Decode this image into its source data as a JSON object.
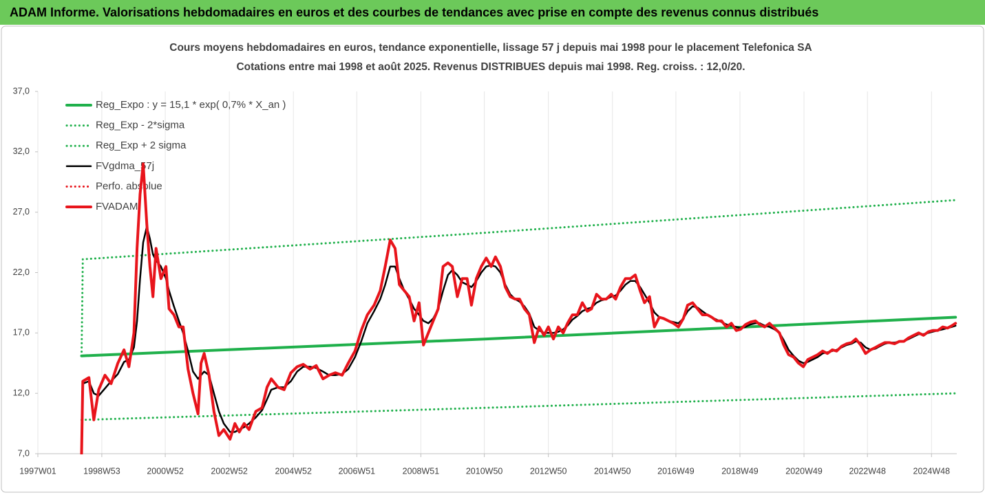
{
  "chart_data": {
    "type": "line",
    "header": "ADAM Informe. Valorisations hebdomadaires en euros et des courbes de tendances avec prise en compte des revenus connus distribués",
    "title": "Cours moyens hebdomadaires en euros, tendance exponentielle, lissage 57 j depuis mai 1998 pour le placement Telefonica SA",
    "subtitle": "Cotations entre mai 1998 et août 2025. Revenus DISTRIBUES depuis mai 1998. Reg. croiss. : 12,0/20.",
    "grid": "x",
    "legend": "top-left",
    "xlim": [
      "1997W01",
      "2025W37"
    ],
    "xticks": [
      "1997W01",
      "1998W53",
      "2000W52",
      "2002W52",
      "2004W52",
      "2006W51",
      "2008W51",
      "2010W50",
      "2012W50",
      "2014W50",
      "2016W49",
      "2018W49",
      "2020W49",
      "2022W48",
      "2024W48"
    ],
    "ylim": [
      7,
      37
    ],
    "yticks": [
      {
        "value": 7,
        "label": "7,0"
      },
      {
        "value": 12,
        "label": "12,0"
      },
      {
        "value": 17,
        "label": "17,0"
      },
      {
        "value": 22,
        "label": "22,0"
      },
      {
        "value": 27,
        "label": "27,0"
      },
      {
        "value": 32,
        "label": "32,0"
      },
      {
        "value": 37,
        "label": "37,0"
      }
    ],
    "x": [
      "1998W20",
      "1998W22",
      "1998W32",
      "1998W40",
      "1998W48",
      "1999W06",
      "1999W16",
      "1999W27",
      "1999W37",
      "1999W45",
      "2000W01",
      "2000W06",
      "2000W11",
      "2000W16",
      "2000W22",
      "2000W27",
      "2000W32",
      "2000W37",
      "2000W45",
      "2001W01",
      "2001W06",
      "2001W14",
      "2001W22",
      "2001W29",
      "2001W37",
      "2001W45",
      "2002W01",
      "2002W06",
      "2002W11",
      "2002W19",
      "2002W27",
      "2002W35",
      "2002W43",
      "2003W01",
      "2003W09",
      "2003W16",
      "2003W24",
      "2003W32",
      "2003W43",
      "2004W01",
      "2004W09",
      "2004W16",
      "2004W27",
      "2004W37",
      "2004W48",
      "2005W06",
      "2005W16",
      "2005W27",
      "2005W37",
      "2005W48",
      "2006W06",
      "2006W16",
      "2006W27",
      "2006W37",
      "2006W48",
      "2007W06",
      "2007W16",
      "2007W27",
      "2007W37",
      "2007W45",
      "2008W01",
      "2008W09",
      "2008W16",
      "2008W24",
      "2008W32",
      "2008W40",
      "2008W48",
      "2009W03",
      "2009W11",
      "2009W19",
      "2009W27",
      "2009W35",
      "2009W43",
      "2009W50",
      "2010W06",
      "2010W14",
      "2010W22",
      "2010W29",
      "2010W37",
      "2010W45",
      "2011W01",
      "2011W09",
      "2011W16",
      "2011W24",
      "2011W32",
      "2011W40",
      "2011W48",
      "2012W03",
      "2012W11",
      "2012W19",
      "2012W27",
      "2012W35",
      "2012W43",
      "2012W50",
      "2013W06",
      "2013W14",
      "2013W22",
      "2013W29",
      "2013W37",
      "2013W45",
      "2014W01",
      "2014W09",
      "2014W16",
      "2014W24",
      "2014W32",
      "2014W40",
      "2014W48",
      "2015W03",
      "2015W11",
      "2015W19",
      "2015W27",
      "2015W35",
      "2015W43",
      "2015W50",
      "2016W06",
      "2016W14",
      "2016W22",
      "2016W29",
      "2016W37",
      "2016W45",
      "2017W01",
      "2017W09",
      "2017W16",
      "2017W24",
      "2017W32",
      "2017W40",
      "2017W48",
      "2018W03",
      "2018W11",
      "2018W19",
      "2018W27",
      "2018W35",
      "2018W43",
      "2018W50",
      "2019W06",
      "2019W14",
      "2019W22",
      "2019W29",
      "2019W37",
      "2019W45",
      "2020W01",
      "2020W09",
      "2020W16",
      "2020W24",
      "2020W32",
      "2020W40",
      "2020W48",
      "2021W03",
      "2021W11",
      "2021W19",
      "2021W27",
      "2021W35",
      "2021W43",
      "2021W50",
      "2022W06",
      "2022W14",
      "2022W22",
      "2022W29",
      "2022W37",
      "2022W45",
      "2023W01",
      "2023W09",
      "2023W16",
      "2023W24",
      "2023W32",
      "2023W40",
      "2023W48",
      "2024W03",
      "2024W11",
      "2024W19",
      "2024W27",
      "2024W35",
      "2024W43",
      "2024W50",
      "2025W06",
      "2025W14",
      "2025W22",
      "2025W29",
      "2025W35"
    ],
    "series": [
      {
        "name": "Reg_Expo : y = 15,1 * exp( 0,7% *  X_an )",
        "color": "#1fb04b",
        "style": "solid",
        "width": 4,
        "x": [
          "1998W20",
          "2011W01",
          "2025W35"
        ],
        "values": [
          15.1,
          16.5,
          18.3
        ]
      },
      {
        "name": "Reg_Exp - 2*sigma",
        "color": "#1fb04b",
        "style": "dotted",
        "width": 3,
        "x": [
          "1998W20",
          "2011W01",
          "2025W35"
        ],
        "values": [
          9.8,
          10.8,
          12.0
        ]
      },
      {
        "name": "Reg_Exp + 2 sigma",
        "color": "#1fb04b",
        "style": "dotted",
        "width": 3,
        "x": [
          "1998W20",
          "1998W22",
          "2011W01",
          "2025W35"
        ],
        "values": [
          15.1,
          23.1,
          25.3,
          28.0
        ]
      },
      {
        "name": "FVgdma_57j",
        "color": "#000000",
        "style": "solid",
        "width": 2.5,
        "values": [
          7,
          12.8,
          13,
          12,
          11.8,
          12.4,
          13,
          13.6,
          14.6,
          14.8,
          15.8,
          18,
          21.5,
          24.5,
          25.8,
          24.8,
          23.5,
          23,
          22.5,
          21.5,
          20.5,
          19.2,
          18,
          17,
          15.5,
          13.8,
          13.2,
          13.5,
          13.8,
          13.5,
          12,
          10.5,
          9.5,
          8.8,
          8.8,
          9,
          9.2,
          9.5,
          10,
          10.6,
          11.5,
          12.3,
          12.5,
          12.5,
          13,
          13.8,
          14.2,
          14.2,
          14.1,
          13.8,
          13.5,
          13.5,
          13.6,
          14,
          15,
          16.3,
          17.8,
          18.8,
          19.8,
          21,
          22.5,
          22.5,
          21.5,
          20.5,
          19.8,
          19,
          18.5,
          18,
          17.8,
          18.2,
          19,
          20.5,
          21.8,
          22.2,
          21.8,
          21.2,
          21,
          20.8,
          21.3,
          22,
          22.5,
          22.6,
          22.5,
          22,
          21,
          20.2,
          19.8,
          19.6,
          19.2,
          18.6,
          17.5,
          17.2,
          17,
          17,
          17,
          17.1,
          17.3,
          17.6,
          18.1,
          18.4,
          18.8,
          19,
          19.1,
          19.5,
          19.7,
          19.8,
          20,
          20.1,
          20.5,
          21,
          21.3,
          21.3,
          20.8,
          20.2,
          19.5,
          18.7,
          18.3,
          18.2,
          18,
          17.9,
          17.8,
          18.2,
          18.8,
          19.2,
          19.1,
          18.8,
          18.5,
          18.3,
          18.1,
          17.9,
          17.7,
          17.6,
          17.5,
          17.4,
          17.5,
          17.7,
          17.8,
          17.8,
          17.6,
          17.5,
          17.3,
          17,
          16.4,
          15.6,
          15.1,
          14.7,
          14.5,
          14.6,
          14.8,
          15,
          15.3,
          15.4,
          15.5,
          15.6,
          15.8,
          16,
          16.1,
          16.3,
          16.2,
          15.8,
          15.6,
          15.7,
          15.9,
          16.1,
          16.2,
          16.2,
          16.3,
          16.3,
          16.5,
          16.7,
          16.9,
          16.9,
          17,
          17.1,
          17.2,
          17.3,
          17.4,
          17.5,
          17.6
        ]
      },
      {
        "name": "Perfo. absolue",
        "color": "#e8141b",
        "style": "dotted",
        "width": 3
      },
      {
        "name": "FVADAM",
        "color": "#e8141b",
        "style": "solid",
        "width": 4,
        "values": [
          7,
          13,
          13.3,
          9.8,
          12.3,
          13.5,
          12.8,
          14.5,
          15.6,
          14.2,
          17,
          24,
          28.5,
          31,
          26,
          22.5,
          20,
          24,
          21.5,
          22.5,
          19,
          18.5,
          17.5,
          17.5,
          14,
          12,
          10.3,
          14.5,
          15.3,
          13.5,
          10.5,
          8.5,
          9,
          8.2,
          9.5,
          8.8,
          9.5,
          9,
          10.5,
          10.8,
          12.5,
          13.2,
          12.5,
          12.3,
          13.7,
          14.2,
          14.4,
          14,
          14.3,
          13.2,
          13.5,
          13.7,
          13.5,
          14.5,
          15.5,
          17.2,
          18.5,
          19.3,
          20.5,
          22.5,
          24.7,
          24,
          21,
          20.5,
          20,
          18,
          19.5,
          16,
          17,
          18,
          19,
          22.5,
          22.8,
          22.5,
          20,
          21.5,
          21.5,
          19.3,
          21.5,
          22.5,
          23.2,
          22.5,
          23.3,
          22.5,
          20.8,
          20,
          19.8,
          19.8,
          19,
          18.5,
          16.2,
          17.5,
          16.8,
          17.5,
          16.5,
          17.5,
          17,
          17.8,
          18.5,
          18.5,
          19.5,
          18.8,
          19,
          20.2,
          19.8,
          19.8,
          20.2,
          19.8,
          20.8,
          21.5,
          21.5,
          21.8,
          20.5,
          19.5,
          20,
          17.5,
          18.3,
          18.2,
          18,
          17.8,
          17.5,
          18.2,
          19.3,
          19.5,
          19,
          18.5,
          18.5,
          18.3,
          18,
          18,
          17.5,
          17.8,
          17.2,
          17.3,
          17.7,
          17.9,
          18,
          17.7,
          17.5,
          17.8,
          17.4,
          17,
          16,
          15.2,
          15,
          14.5,
          14.2,
          14.8,
          15,
          15.2,
          15.5,
          15.3,
          15.6,
          15.5,
          15.9,
          16.1,
          16.2,
          16.5,
          16,
          15.3,
          15.6,
          15.8,
          16,
          16.2,
          16.2,
          16.1,
          16.3,
          16.3,
          16.6,
          16.8,
          17,
          16.8,
          17.1,
          17.2,
          17.2,
          17.5,
          17.4,
          17.6,
          17.8
        ]
      }
    ]
  }
}
